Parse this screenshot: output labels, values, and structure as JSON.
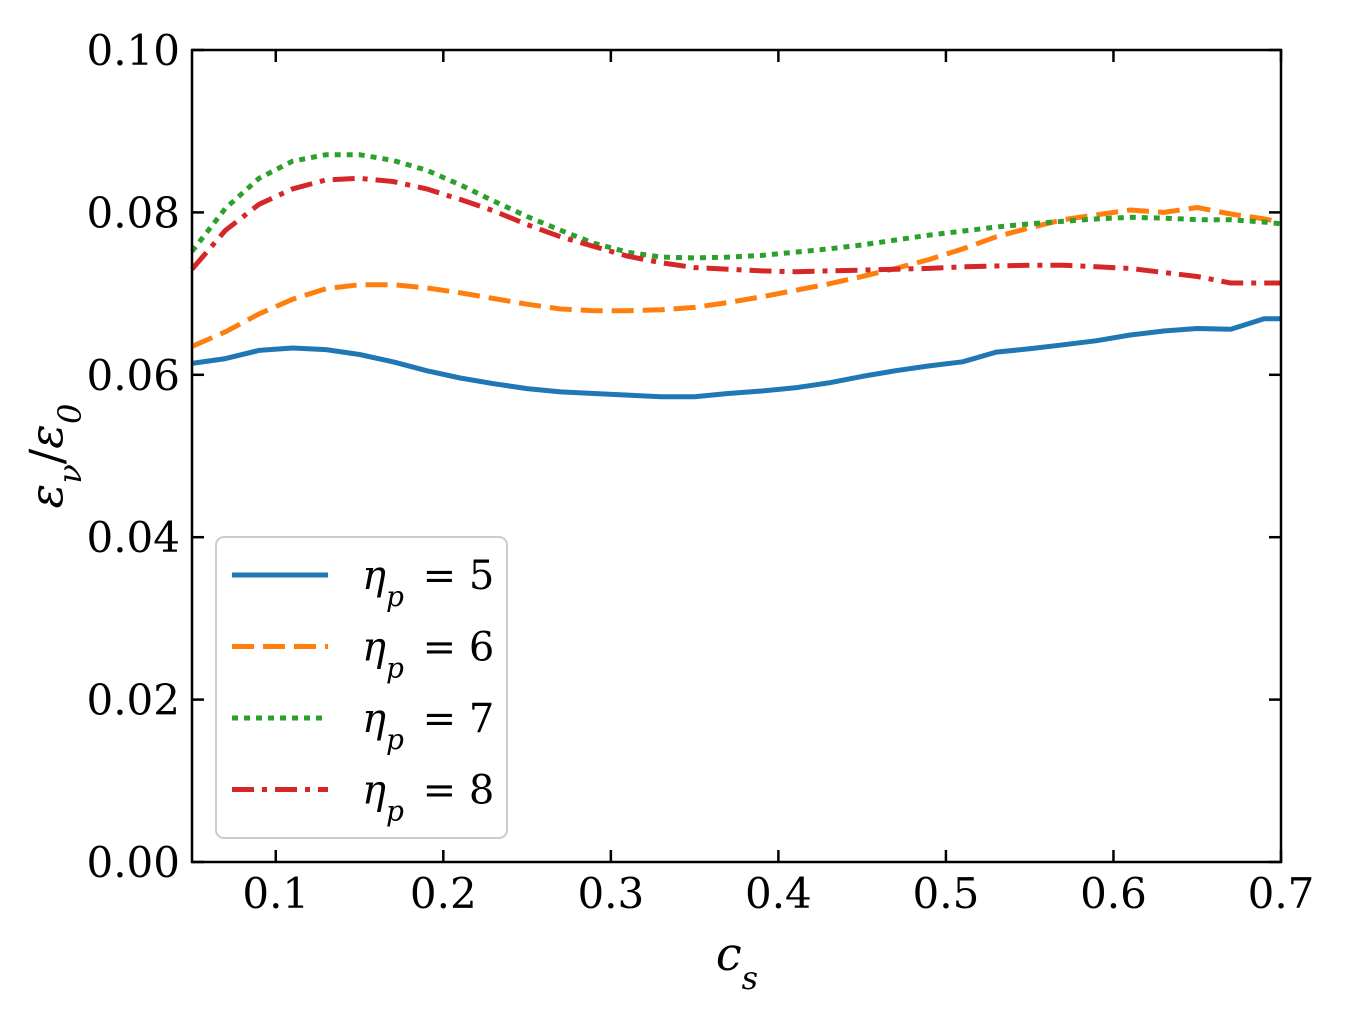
{
  "chart_data": {
    "type": "line",
    "title": "",
    "xlabel": "c_s",
    "ylabel": "ε_ν/ε_0",
    "xlim": [
      0.05,
      0.7
    ],
    "ylim": [
      0.0,
      0.1
    ],
    "xticks": [
      0.1,
      0.2,
      0.3,
      0.4,
      0.5,
      0.6,
      0.7
    ],
    "xtick_labels": [
      "0.1",
      "0.2",
      "0.3",
      "0.4",
      "0.5",
      "0.6",
      "0.7"
    ],
    "yticks": [
      0.0,
      0.02,
      0.04,
      0.06,
      0.08,
      0.1
    ],
    "ytick_labels": [
      "0.00",
      "0.02",
      "0.04",
      "0.06",
      "0.08",
      "0.10"
    ],
    "grid": false,
    "legend_position": "lower-left",
    "x": [
      0.05,
      0.07,
      0.09,
      0.11,
      0.13,
      0.15,
      0.17,
      0.19,
      0.21,
      0.23,
      0.25,
      0.27,
      0.29,
      0.31,
      0.33,
      0.35,
      0.37,
      0.39,
      0.41,
      0.43,
      0.45,
      0.47,
      0.49,
      0.51,
      0.53,
      0.55,
      0.57,
      0.59,
      0.61,
      0.63,
      0.65,
      0.67,
      0.69,
      0.7
    ],
    "series": [
      {
        "name": "η_p = 5",
        "symbol": "η",
        "subscript": "p",
        "equals": "= 5",
        "color": "#1f77b4",
        "dash": "solid",
        "values": [
          0.0614,
          0.062,
          0.063,
          0.0633,
          0.0631,
          0.0625,
          0.0616,
          0.0605,
          0.0596,
          0.0589,
          0.0583,
          0.0579,
          0.0577,
          0.0575,
          0.0573,
          0.0573,
          0.0577,
          0.058,
          0.0584,
          0.059,
          0.0598,
          0.0605,
          0.0611,
          0.0616,
          0.0628,
          0.0632,
          0.0637,
          0.0642,
          0.0649,
          0.0654,
          0.0657,
          0.0656,
          0.0669,
          0.0669
        ]
      },
      {
        "name": "η_p = 6",
        "symbol": "η",
        "subscript": "p",
        "equals": "= 6",
        "color": "#ff7f0e",
        "dash": "dashed",
        "values": [
          0.0635,
          0.0653,
          0.0675,
          0.0693,
          0.0706,
          0.0711,
          0.0711,
          0.0707,
          0.0701,
          0.0694,
          0.0687,
          0.0681,
          0.0679,
          0.0679,
          0.068,
          0.0683,
          0.0689,
          0.0696,
          0.0704,
          0.0712,
          0.0721,
          0.0731,
          0.0742,
          0.0755,
          0.077,
          0.0781,
          0.0791,
          0.0797,
          0.0803,
          0.08,
          0.0806,
          0.0798,
          0.0792,
          0.0788
        ]
      },
      {
        "name": "η_p = 7",
        "symbol": "η",
        "subscript": "p",
        "equals": "= 7",
        "color": "#2ca02c",
        "dash": "dotted",
        "values": [
          0.0752,
          0.0805,
          0.0842,
          0.0863,
          0.0871,
          0.0871,
          0.0864,
          0.0852,
          0.0834,
          0.0814,
          0.0795,
          0.0778,
          0.0762,
          0.0751,
          0.0745,
          0.0744,
          0.0745,
          0.0747,
          0.0751,
          0.0755,
          0.076,
          0.0766,
          0.0772,
          0.0777,
          0.0782,
          0.0786,
          0.0789,
          0.0792,
          0.0794,
          0.0793,
          0.0791,
          0.0791,
          0.0788,
          0.0786
        ]
      },
      {
        "name": "η_p = 8",
        "symbol": "η",
        "subscript": "p",
        "equals": "= 8",
        "color": "#d62728",
        "dash": "dashdot",
        "values": [
          0.073,
          0.0778,
          0.081,
          0.0829,
          0.084,
          0.0842,
          0.0838,
          0.0829,
          0.0816,
          0.0802,
          0.0785,
          0.077,
          0.0758,
          0.0746,
          0.0738,
          0.0732,
          0.073,
          0.0728,
          0.0727,
          0.0728,
          0.0729,
          0.073,
          0.0731,
          0.0733,
          0.0734,
          0.0735,
          0.0735,
          0.0733,
          0.0731,
          0.0726,
          0.0721,
          0.0713,
          0.0713,
          0.0713
        ]
      }
    ]
  }
}
